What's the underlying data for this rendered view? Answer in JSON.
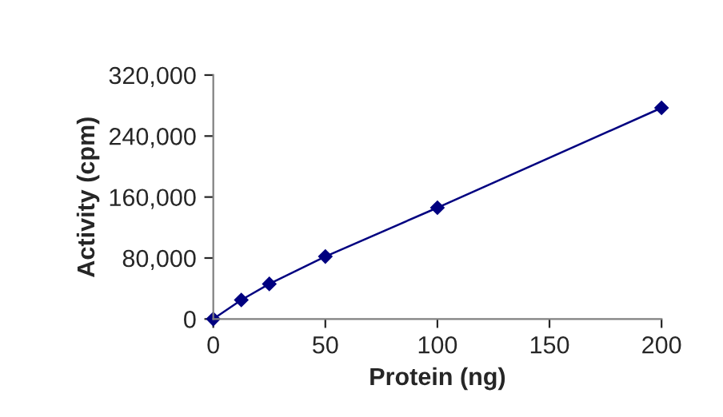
{
  "chart_data": {
    "type": "line",
    "xlabel": "Protein (ng)",
    "ylabel": "Activity (cpm)",
    "x": [
      0,
      12.5,
      25,
      50,
      100,
      200
    ],
    "series": [
      {
        "color": "#000080",
        "values": [
          0,
          25000,
          46000,
          82000,
          146000,
          277000
        ]
      }
    ],
    "marker": "diamond",
    "line_style": "solid",
    "xlim": [
      0,
      200
    ],
    "xticks": [
      0,
      50,
      100,
      150,
      200
    ],
    "ylim": [
      0,
      320000
    ],
    "yticks": [
      0,
      {
        "value": 80000,
        "label": "80,000"
      },
      {
        "value": 160000,
        "label": "160,000"
      },
      {
        "value": 240000,
        "label": "240,000"
      },
      {
        "value": 320000,
        "label": "320,000"
      }
    ]
  }
}
